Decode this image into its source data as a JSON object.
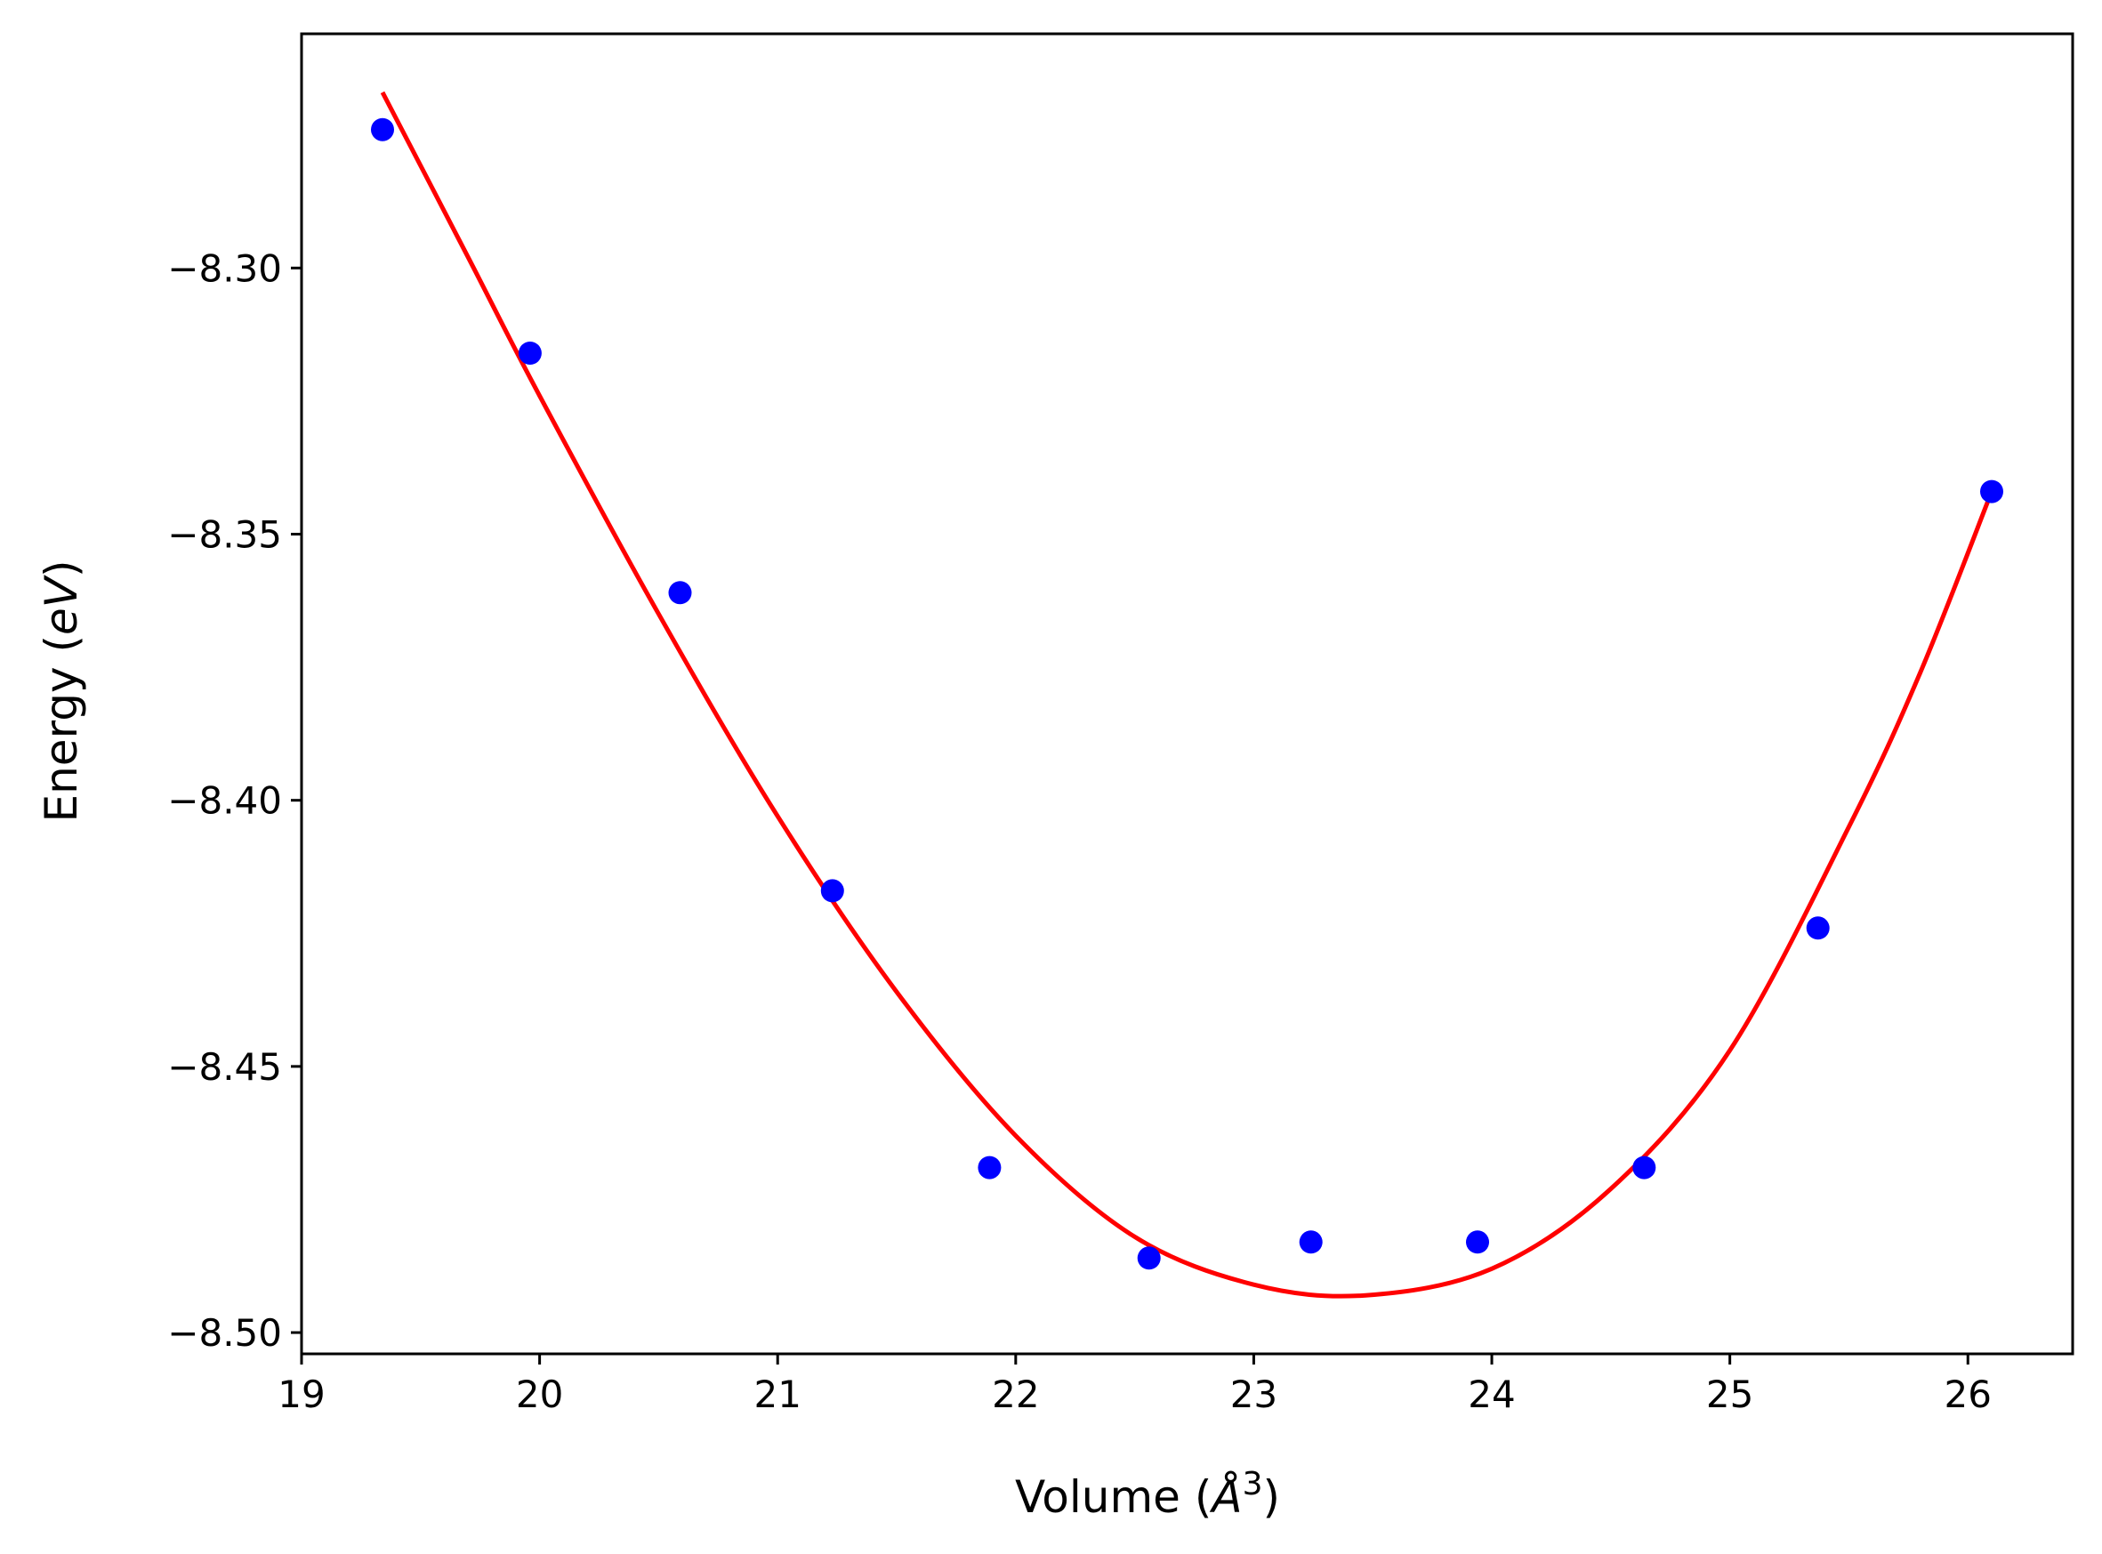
{
  "chart_data": {
    "type": "scatter",
    "title": "",
    "xlabel": "Volume (Å³)",
    "ylabel": "Energy (eV)",
    "xlabel_parts": {
      "prefix": "Volume (",
      "symbol": "Å",
      "superscript": "3",
      "suffix": ")"
    },
    "ylabel_parts": {
      "prefix": "Energy (",
      "symbol": "eV",
      "suffix": ")"
    },
    "xlim": [
      19.0,
      26.44
    ],
    "ylim": [
      -8.504,
      -8.256
    ],
    "x_ticks": [
      19,
      20,
      21,
      22,
      23,
      24,
      25,
      26
    ],
    "x_tick_labels": [
      "19",
      "20",
      "21",
      "22",
      "23",
      "24",
      "25",
      "26"
    ],
    "y_ticks": [
      -8.3,
      -8.35,
      -8.4,
      -8.45,
      -8.5
    ],
    "y_tick_labels": [
      "−8.30",
      "−8.35",
      "−8.40",
      "−8.45",
      "−8.50"
    ],
    "grid": false,
    "series": [
      {
        "type": "scatter",
        "color": "#0000ff",
        "x": [
          19.34,
          19.96,
          20.59,
          21.23,
          21.89,
          22.56,
          23.24,
          23.94,
          24.64,
          25.37,
          26.1
        ],
        "y": [
          -8.274,
          -8.316,
          -8.361,
          -8.417,
          -8.469,
          -8.486,
          -8.483,
          -8.483,
          -8.469,
          -8.424,
          -8.342
        ]
      },
      {
        "type": "line",
        "color": "#ff0000",
        "x": [
          19.34,
          19.7,
          20.0,
          20.5,
          21.0,
          21.5,
          22.0,
          22.5,
          23.0,
          23.47,
          24.0,
          24.5,
          25.0,
          25.5,
          25.8,
          26.1
        ],
        "y": [
          -8.267,
          -8.298,
          -8.324,
          -8.365,
          -8.403,
          -8.436,
          -8.463,
          -8.482,
          -8.491,
          -8.493,
          -8.488,
          -8.473,
          -8.447,
          -8.405,
          -8.376,
          -8.342
        ]
      }
    ]
  }
}
